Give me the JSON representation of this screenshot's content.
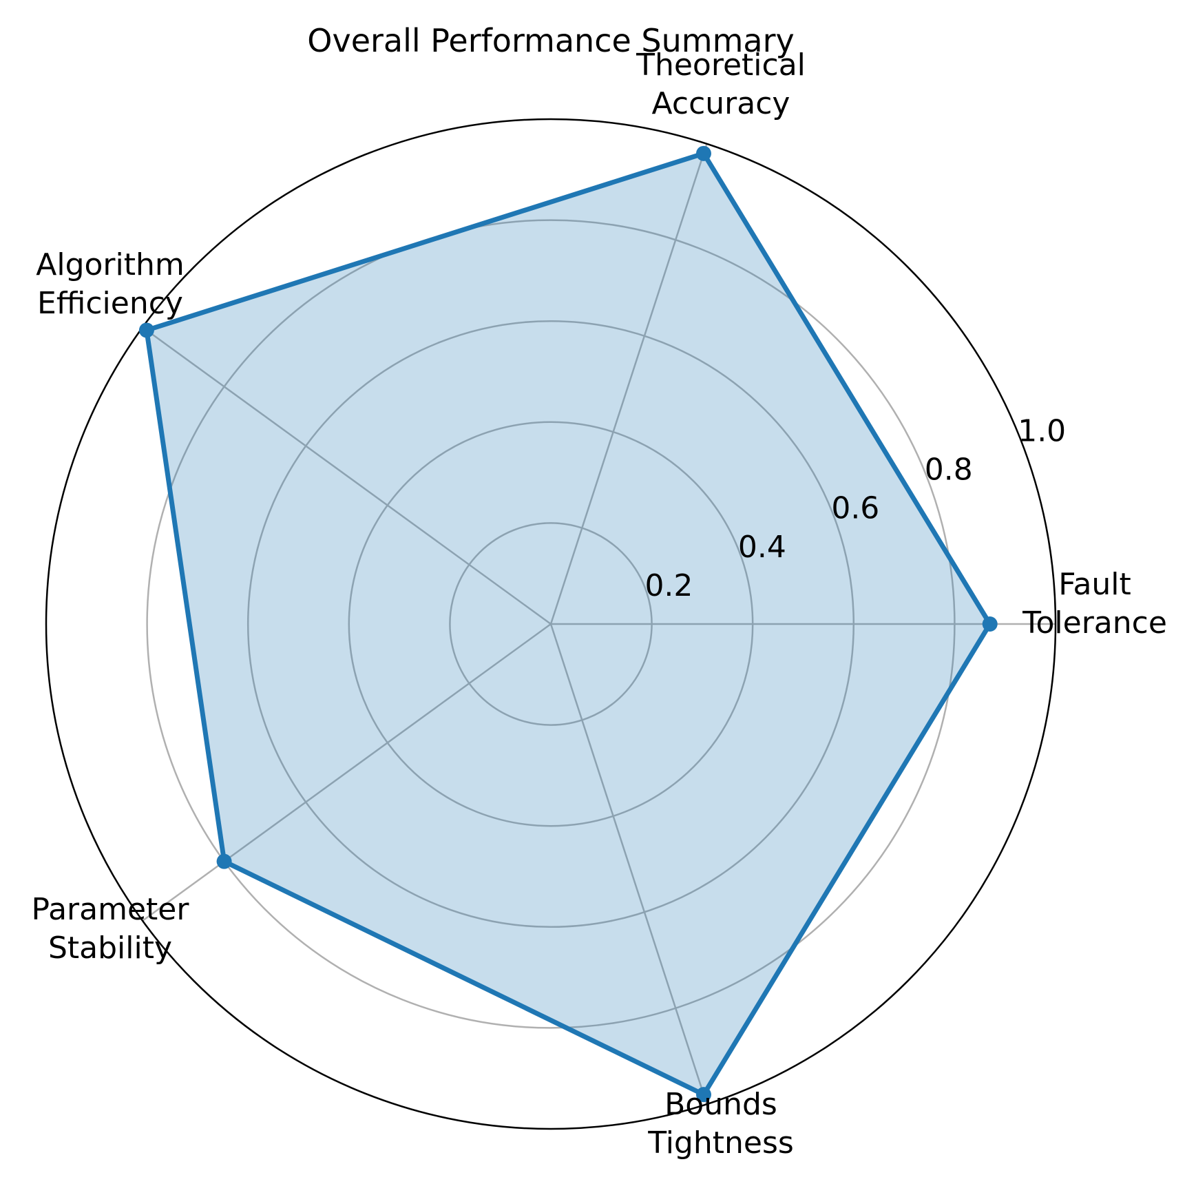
{
  "chart_data": {
    "type": "radar",
    "title": "Overall Performance Summary",
    "categories": [
      [
        "Fault",
        "Tolerance"
      ],
      [
        "Theoretical",
        "Accuracy"
      ],
      [
        "Algorithm",
        "Efficiency"
      ],
      [
        "Parameter",
        "Stability"
      ],
      [
        "Bounds",
        "Tightness"
      ]
    ],
    "series": [
      {
        "values": [
          0.87,
          0.98,
          0.99,
          0.8,
          0.98
        ]
      }
    ],
    "rticks": [
      "0.2",
      "0.4",
      "0.6",
      "0.8",
      "1.0"
    ],
    "rlim": [
      0,
      1
    ],
    "grid": true,
    "colors": {
      "line": "#1f77b4",
      "fill": "#1f77b4",
      "grid": "#b0b0b0",
      "frame": "#000000"
    }
  }
}
